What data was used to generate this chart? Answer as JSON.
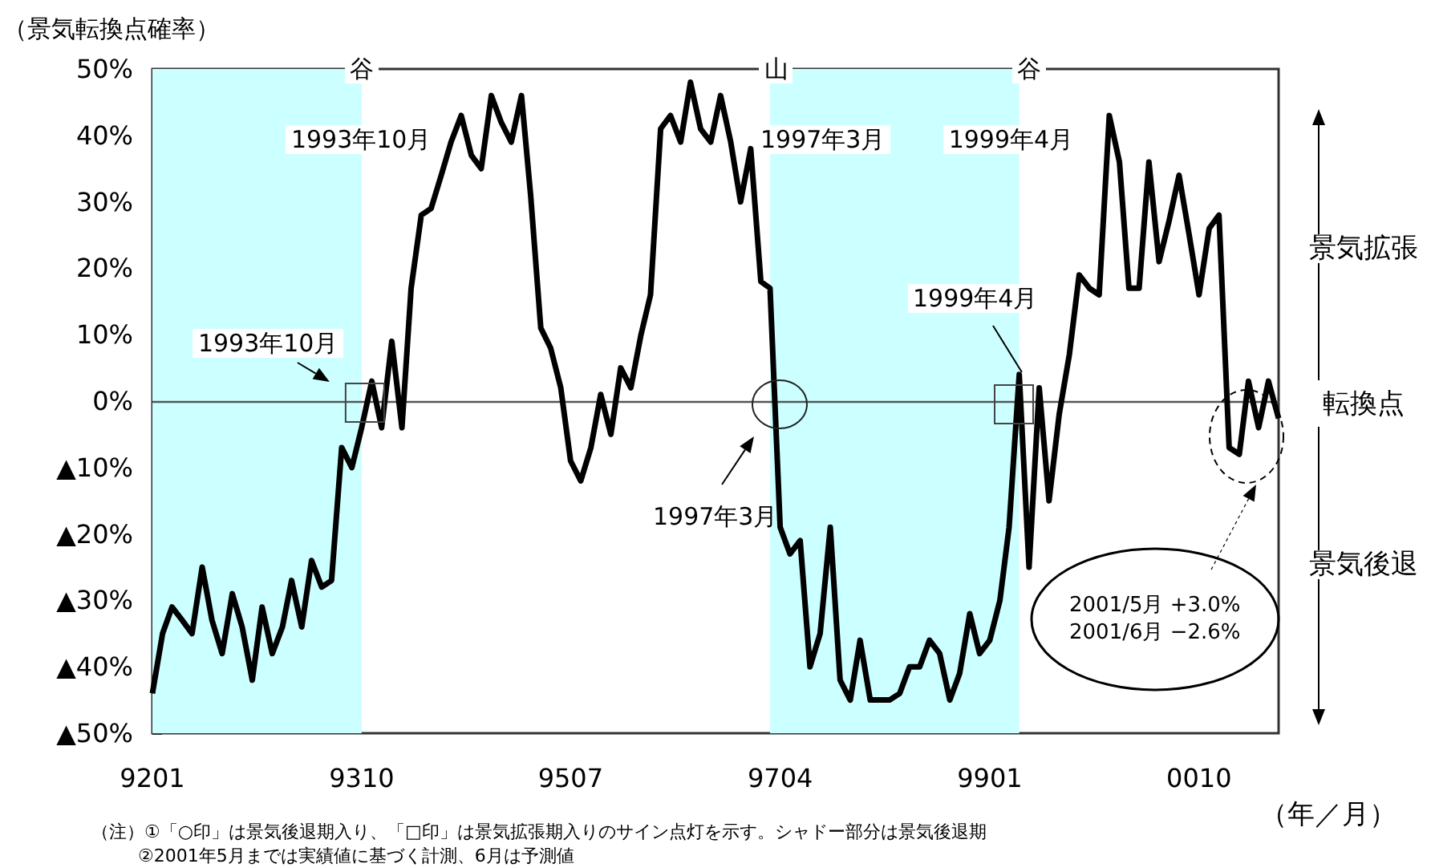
{
  "chart_data": {
    "type": "line",
    "ylabel": "（景気転換点確率）",
    "xlabel": "（年／月）",
    "x": [
      "1992-01",
      "1992-02",
      "1992-03",
      "1992-04",
      "1992-05",
      "1992-06",
      "1992-07",
      "1992-08",
      "1992-09",
      "1992-10",
      "1992-11",
      "1992-12",
      "1993-01",
      "1993-02",
      "1993-03",
      "1993-04",
      "1993-05",
      "1993-06",
      "1993-07",
      "1993-08",
      "1993-09",
      "1993-10",
      "1993-11",
      "1993-12",
      "1994-01",
      "1994-02",
      "1994-03",
      "1994-04",
      "1994-05",
      "1994-06",
      "1994-07",
      "1994-08",
      "1994-09",
      "1994-10",
      "1994-11",
      "1994-12",
      "1995-01",
      "1995-02",
      "1995-03",
      "1995-04",
      "1995-05",
      "1995-06",
      "1995-07",
      "1995-08",
      "1995-09",
      "1995-10",
      "1995-11",
      "1995-12",
      "1996-01",
      "1996-02",
      "1996-03",
      "1996-04",
      "1996-05",
      "1996-06",
      "1996-07",
      "1996-08",
      "1996-09",
      "1996-10",
      "1996-11",
      "1996-12",
      "1997-01",
      "1997-02",
      "1997-03",
      "1997-04",
      "1997-05",
      "1997-06",
      "1997-07",
      "1997-08",
      "1997-09",
      "1997-10",
      "1997-11",
      "1997-12",
      "1998-01",
      "1998-02",
      "1998-03",
      "1998-04",
      "1998-05",
      "1998-06",
      "1998-07",
      "1998-08",
      "1998-09",
      "1998-10",
      "1998-11",
      "1998-12",
      "1999-01",
      "1999-02",
      "1999-03",
      "1999-04",
      "1999-05",
      "1999-06",
      "1999-07",
      "1999-08",
      "1999-09",
      "1999-10",
      "1999-11",
      "1999-12",
      "2000-01",
      "2000-02",
      "2000-03",
      "2000-04",
      "2000-05",
      "2000-06",
      "2000-07",
      "2000-08",
      "2000-09",
      "2000-10",
      "2000-11",
      "2000-12",
      "2001-01",
      "2001-02",
      "2001-03",
      "2001-04",
      "2001-05",
      "2001-06"
    ],
    "series": [
      {
        "color": "#000000",
        "values": [
          -44,
          -35,
          -31,
          -33,
          -35,
          -25,
          -33,
          -38,
          -29,
          -34,
          -42,
          -31,
          -38,
          -34,
          -27,
          -34,
          -24,
          -28,
          -27,
          -7,
          -10,
          -4,
          3,
          -4,
          9,
          -4,
          17,
          28,
          29,
          34,
          39,
          43,
          37,
          35,
          46,
          42,
          39,
          46,
          31,
          11,
          8,
          2,
          -9,
          -12,
          -7,
          1,
          -5,
          5,
          2,
          10,
          16,
          41,
          43,
          39,
          48,
          41,
          39,
          46,
          39,
          30,
          38,
          18,
          17,
          -19,
          -23,
          -21,
          -40,
          -35,
          -19,
          -42,
          -45,
          -36,
          -45,
          -45,
          -45,
          -44,
          -40,
          -40,
          -36,
          -38,
          -45,
          -41,
          -32,
          -38,
          -36,
          -30,
          -19,
          4,
          -25,
          2,
          -15,
          -2,
          7,
          19,
          17,
          16,
          43,
          36,
          17,
          17,
          36,
          21,
          27,
          34,
          25,
          16,
          26,
          28,
          -7,
          -8,
          3,
          -4,
          3.0,
          -2.6
        ]
      }
    ],
    "xlim": [
      "1992-01",
      "2001-06"
    ],
    "xticks": [
      {
        "value": "1992-01",
        "label": "9201"
      },
      {
        "value": "1993-10",
        "label": "9310"
      },
      {
        "value": "1995-07",
        "label": "9507"
      },
      {
        "value": "1997-04",
        "label": "9704"
      },
      {
        "value": "1999-01",
        "label": "9901"
      },
      {
        "value": "2000-10",
        "label": "0010"
      }
    ],
    "ylim": [
      -50,
      50
    ],
    "yticks": [
      {
        "value": -50,
        "label": "▲50%"
      },
      {
        "value": -40,
        "label": "▲40%"
      },
      {
        "value": -30,
        "label": "▲30%"
      },
      {
        "value": -20,
        "label": "▲20%"
      },
      {
        "value": -10,
        "label": "▲10%"
      },
      {
        "value": 0,
        "label": "0%"
      },
      {
        "value": 10,
        "label": "10%"
      },
      {
        "value": 20,
        "label": "20%"
      },
      {
        "value": 30,
        "label": "30%"
      },
      {
        "value": 40,
        "label": "40%"
      },
      {
        "value": 50,
        "label": "50%"
      }
    ],
    "grid": false,
    "marker": "none",
    "line_style": "solid",
    "ref_lines": [
      {
        "axis": "y",
        "value": 0,
        "color": "#555555"
      }
    ],
    "bands": [
      {
        "axis": "x",
        "from": "1992-01",
        "to": "1993-10",
        "color": "#ccffff"
      },
      {
        "axis": "x",
        "from": "1997-03",
        "to": "1999-04",
        "color": "#ccffff"
      }
    ],
    "annotations": [
      {
        "text": "谷",
        "x": "1993-10",
        "y": 50
      },
      {
        "text": "1993年10月",
        "x": "1993-10",
        "y": 41
      },
      {
        "text": "山",
        "x": "1997-03",
        "y": 50
      },
      {
        "text": "1997年3月",
        "x": "1997-03",
        "y": 41
      },
      {
        "text": "谷",
        "x": "1999-04",
        "y": 50
      },
      {
        "text": "1999年4月",
        "x": "1999-04",
        "y": 41
      },
      {
        "text": "1993年10月",
        "x": "1993-10",
        "y": 0
      },
      "1997年3月",
      "1999年4月",
      "景気拡張",
      "転換点",
      "景気後退",
      "2001/5月 +3.0%\n2001/6月 −2.6%",
      "（注）①「○印」は景気後退期入り、「□印」は景気拡張期入りのサイン点灯を示す。シャドー部分は景気後退期",
      "②2001年5月までは実績値に基づく計測、6月は予測値"
    ]
  }
}
